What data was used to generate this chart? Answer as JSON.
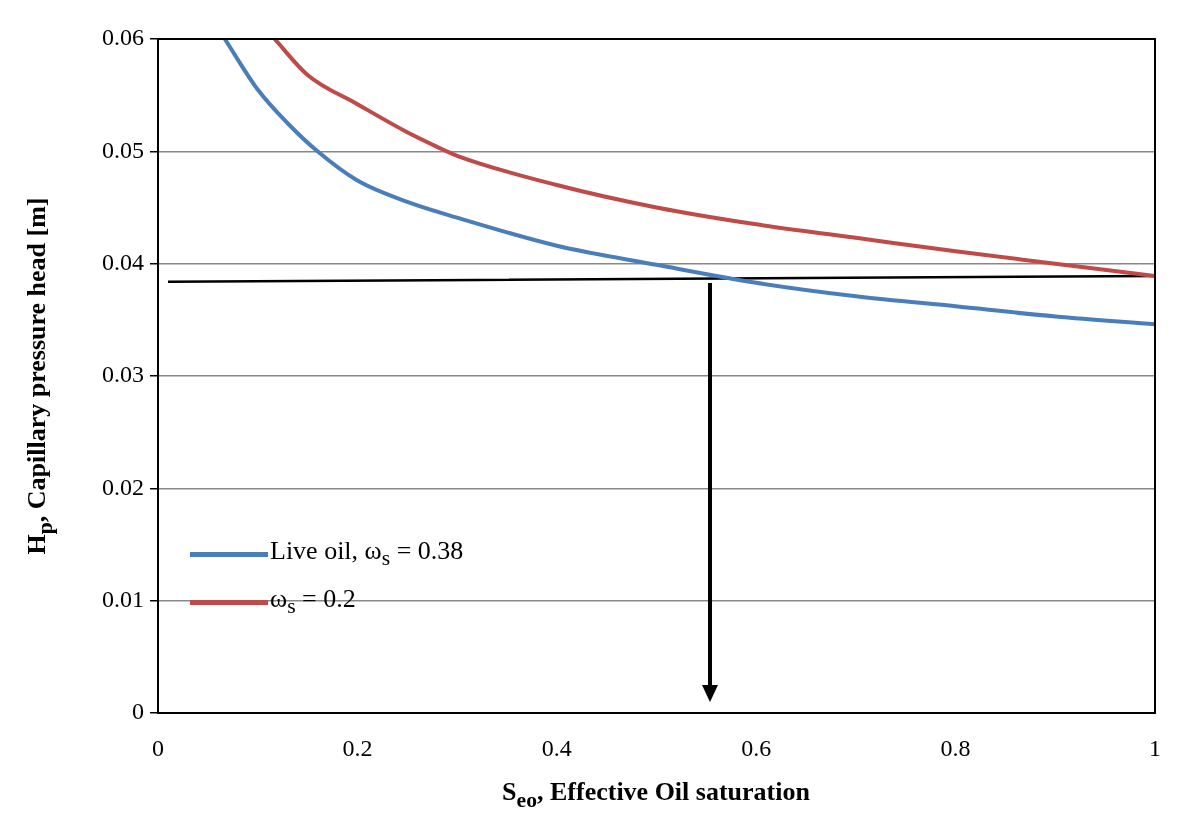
{
  "chart_data": {
    "type": "line",
    "xlabel": "S$_{eo}$, Effective Oil saturation",
    "ylabel": "H$_{p}$, Capillary pressure head [m]",
    "xlim": [
      0,
      1
    ],
    "xticks": [
      0,
      0.2,
      0.4,
      0.6,
      0.8,
      1
    ],
    "ylim": [
      0,
      0.06
    ],
    "yticks": [
      0,
      0.01,
      0.02,
      0.03,
      0.04,
      0.05,
      0.06
    ],
    "grid": "y",
    "legend": "left",
    "marker": "none",
    "line_style": "solid",
    "series": [
      {
        "name": "Live oil, ω$_{s}$ = 0.38",
        "color": "#4a7ebb",
        "x": [
          0.067,
          0.1,
          0.13,
          0.16,
          0.2,
          0.25,
          0.3,
          0.4,
          0.5,
          0.6,
          0.7,
          0.8,
          0.9,
          1
        ],
        "values": [
          0.06,
          0.0555,
          0.0525,
          0.05,
          0.0474,
          0.0455,
          0.0441,
          0.0416,
          0.0399,
          0.0383,
          0.0371,
          0.0362,
          0.0353,
          0.0346
        ]
      },
      {
        "name": "ω$_{s}$ = 0.2",
        "color": "#be4b48",
        "x": [
          0.117,
          0.15,
          0.2,
          0.25,
          0.28,
          0.3,
          0.4,
          0.5,
          0.6,
          0.7,
          0.8,
          0.9,
          1
        ],
        "values": [
          0.06,
          0.0568,
          0.0542,
          0.0517,
          0.0504,
          0.0496,
          0.047,
          0.045,
          0.0435,
          0.0423,
          0.0411,
          0.04,
          0.0389
        ]
      },
      {
        "color": "#000000",
        "x": [
          0.01,
          1
        ],
        "values": [
          0.0384,
          0.0389
        ]
      }
    ]
  }
}
